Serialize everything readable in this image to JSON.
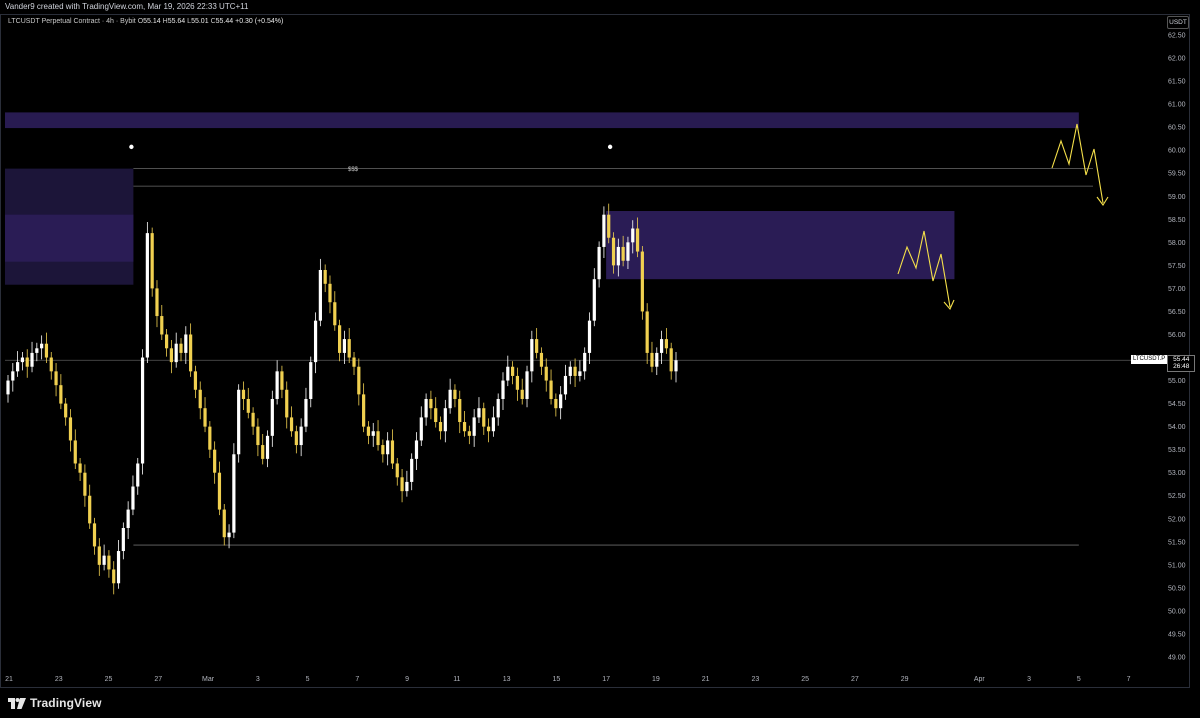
{
  "header": {
    "credit": "Vander9 created with TradingView.com, Mar 19, 2026 22:33 UTC+11"
  },
  "legend": {
    "title": "LTCUSDT Perpetual Contract · 4h · Bybit",
    "o_key": "O",
    "o_val": "55.14",
    "h_key": "H",
    "h_val": "55.64",
    "l_key": "L",
    "l_val": "55.01",
    "c_key": "C",
    "c_val": "55.44",
    "change": "+0.30 (+0.54%)"
  },
  "currency": "USDT",
  "price_tag": {
    "symbol": "LTCUSDT.P",
    "price": "55.44",
    "countdown": "26:48"
  },
  "annotation_text": "$$$",
  "footer": {
    "brand": "TradingView"
  },
  "colors": {
    "background": "#000000",
    "bull_candle": "#ffffff",
    "bear_candle": "#f0d050",
    "zone": "#2a1c55",
    "zone_light": "#1e163c",
    "arrow": "#f5e04a",
    "level_line": "#6b6b6b"
  },
  "chart_data": {
    "type": "candlestick",
    "symbol": "LTCUSDT Perpetual Contract",
    "timeframe": "4h",
    "exchange": "Bybit",
    "y_ticks": [
      "62.50",
      "62.00",
      "61.50",
      "61.00",
      "60.50",
      "60.00",
      "59.50",
      "59.00",
      "58.50",
      "58.00",
      "57.50",
      "57.00",
      "56.50",
      "56.00",
      "55.50",
      "55.00",
      "54.50",
      "54.00",
      "53.50",
      "53.00",
      "52.50",
      "52.00",
      "51.50",
      "51.00",
      "50.50",
      "50.00",
      "49.50",
      "49.00"
    ],
    "ylim": [
      48.6,
      62.85
    ],
    "x_ticks": [
      "21",
      "23",
      "25",
      "27",
      "Mar",
      "3",
      "5",
      "7",
      "9",
      "11",
      "13",
      "15",
      "17",
      "19",
      "21",
      "23",
      "25",
      "27",
      "29",
      "Apr",
      "3",
      "5",
      "7"
    ],
    "x_range": [
      "Feb 21",
      "Apr 7"
    ],
    "closes": [
      55.0,
      55.2,
      55.4,
      55.5,
      55.3,
      55.6,
      55.7,
      55.8,
      55.5,
      55.2,
      54.9,
      54.5,
      54.2,
      53.7,
      53.2,
      53.0,
      52.5,
      51.9,
      51.4,
      51.0,
      51.2,
      50.9,
      50.6,
      51.3,
      51.8,
      52.2,
      52.7,
      53.2,
      55.5,
      58.2,
      57.0,
      56.4,
      56.0,
      55.7,
      55.4,
      55.8,
      55.6,
      56.0,
      55.2,
      54.8,
      54.4,
      54.0,
      53.5,
      53.0,
      52.2,
      51.6,
      51.7,
      53.4,
      54.8,
      54.6,
      54.3,
      54.0,
      53.6,
      53.3,
      53.8,
      54.6,
      55.2,
      54.8,
      54.2,
      53.9,
      53.6,
      54.0,
      54.6,
      55.4,
      56.3,
      57.4,
      57.1,
      56.7,
      56.2,
      55.6,
      55.9,
      55.5,
      55.3,
      54.7,
      54.0,
      53.8,
      53.9,
      53.6,
      53.4,
      53.7,
      53.2,
      52.9,
      52.6,
      52.8,
      53.3,
      53.7,
      54.2,
      54.6,
      54.4,
      54.1,
      53.9,
      54.4,
      54.8,
      54.6,
      54.1,
      53.9,
      53.8,
      54.2,
      54.4,
      54.0,
      53.9,
      54.2,
      54.6,
      55.0,
      55.3,
      55.1,
      54.8,
      54.6,
      55.2,
      55.9,
      55.6,
      55.3,
      55.0,
      54.6,
      54.4,
      54.7,
      55.1,
      55.3,
      55.1,
      55.2,
      55.6,
      56.3,
      57.2,
      57.9,
      58.6,
      58.1,
      57.5,
      57.9,
      57.6,
      58.0,
      58.3,
      57.8,
      56.5,
      55.6,
      55.3,
      55.6,
      55.9,
      55.7,
      55.2,
      55.44
    ],
    "zones": [
      {
        "label": "upper supply",
        "from": "Feb 21",
        "to": "Apr 5",
        "low": 60.48,
        "high": 60.82
      },
      {
        "label": "left supply outer",
        "from": "Feb 21",
        "to": "Feb 26",
        "low": 57.08,
        "high": 59.6
      },
      {
        "label": "left supply inner",
        "from": "Feb 21",
        "to": "Feb 26",
        "low": 57.58,
        "high": 58.6
      },
      {
        "label": "right supply",
        "from": "Mar 17",
        "to": "Mar 31",
        "low": 57.2,
        "high": 58.68
      }
    ],
    "levels": [
      {
        "label": "liquidity high",
        "price": 59.6,
        "from": "Feb 26",
        "to": "Apr 7"
      },
      {
        "label": "$$$ line",
        "price": 59.22,
        "from": "Feb 26",
        "to": "Apr 7"
      },
      {
        "label": "swing low",
        "price": 51.43,
        "from": "Feb 26",
        "to": "Apr 5"
      },
      {
        "label": "last price",
        "price": 55.44,
        "from": "Feb 21",
        "to": "Apr 7"
      }
    ],
    "markers": [
      {
        "type": "dot",
        "date": "Feb 26",
        "price": 60.05
      },
      {
        "type": "dot",
        "date": "Mar 17",
        "price": 60.05
      }
    ]
  }
}
